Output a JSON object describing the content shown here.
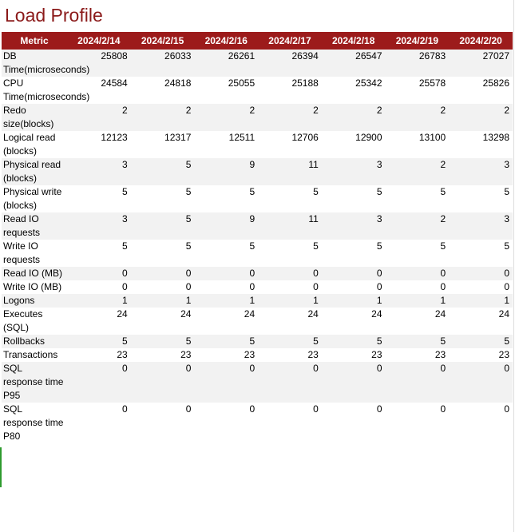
{
  "title": "Load Profile",
  "table": {
    "metric_header": "Metric",
    "dates": [
      "2024/2/14",
      "2024/2/15",
      "2024/2/16",
      "2024/2/17",
      "2024/2/18",
      "2024/2/19",
      "2024/2/20"
    ],
    "rows": [
      {
        "metric": "DB Time(microseconds)",
        "values": [
          "25808",
          "26033",
          "26261",
          "26394",
          "26547",
          "26783",
          "27027"
        ]
      },
      {
        "metric": "CPU Time(microseconds)",
        "values": [
          "24584",
          "24818",
          "25055",
          "25188",
          "25342",
          "25578",
          "25826"
        ]
      },
      {
        "metric": "Redo size(blocks)",
        "values": [
          "2",
          "2",
          "2",
          "2",
          "2",
          "2",
          "2"
        ]
      },
      {
        "metric": "Logical read (blocks)",
        "values": [
          "12123",
          "12317",
          "12511",
          "12706",
          "12900",
          "13100",
          "13298"
        ]
      },
      {
        "metric": "Physical read (blocks)",
        "values": [
          "3",
          "5",
          "9",
          "11",
          "3",
          "2",
          "3"
        ]
      },
      {
        "metric": "Physical write (blocks)",
        "values": [
          "5",
          "5",
          "5",
          "5",
          "5",
          "5",
          "5"
        ]
      },
      {
        "metric": "Read IO requests",
        "values": [
          "3",
          "5",
          "9",
          "11",
          "3",
          "2",
          "3"
        ]
      },
      {
        "metric": "Write IO requests",
        "values": [
          "5",
          "5",
          "5",
          "5",
          "5",
          "5",
          "5"
        ]
      },
      {
        "metric": "Read IO (MB)",
        "values": [
          "0",
          "0",
          "0",
          "0",
          "0",
          "0",
          "0"
        ]
      },
      {
        "metric": "Write IO (MB)",
        "values": [
          "0",
          "0",
          "0",
          "0",
          "0",
          "0",
          "0"
        ]
      },
      {
        "metric": "Logons",
        "values": [
          "1",
          "1",
          "1",
          "1",
          "1",
          "1",
          "1"
        ]
      },
      {
        "metric": "Executes (SQL)",
        "values": [
          "24",
          "24",
          "24",
          "24",
          "24",
          "24",
          "24"
        ]
      },
      {
        "metric": "Rollbacks",
        "values": [
          "5",
          "5",
          "5",
          "5",
          "5",
          "5",
          "5"
        ]
      },
      {
        "metric": "Transactions",
        "values": [
          "23",
          "23",
          "23",
          "23",
          "23",
          "23",
          "23"
        ]
      },
      {
        "metric": "SQL response time P95",
        "values": [
          "0",
          "0",
          "0",
          "0",
          "0",
          "0",
          "0"
        ]
      },
      {
        "metric": "SQL response time P80",
        "values": [
          "0",
          "0",
          "0",
          "0",
          "0",
          "0",
          "0"
        ]
      }
    ]
  },
  "colors": {
    "title": "#8b1a1a",
    "header_bg": "#9c1b1b",
    "header_text": "#ffffff",
    "row_alt": "#f2f2f2",
    "marker": "#2e9b2e"
  }
}
